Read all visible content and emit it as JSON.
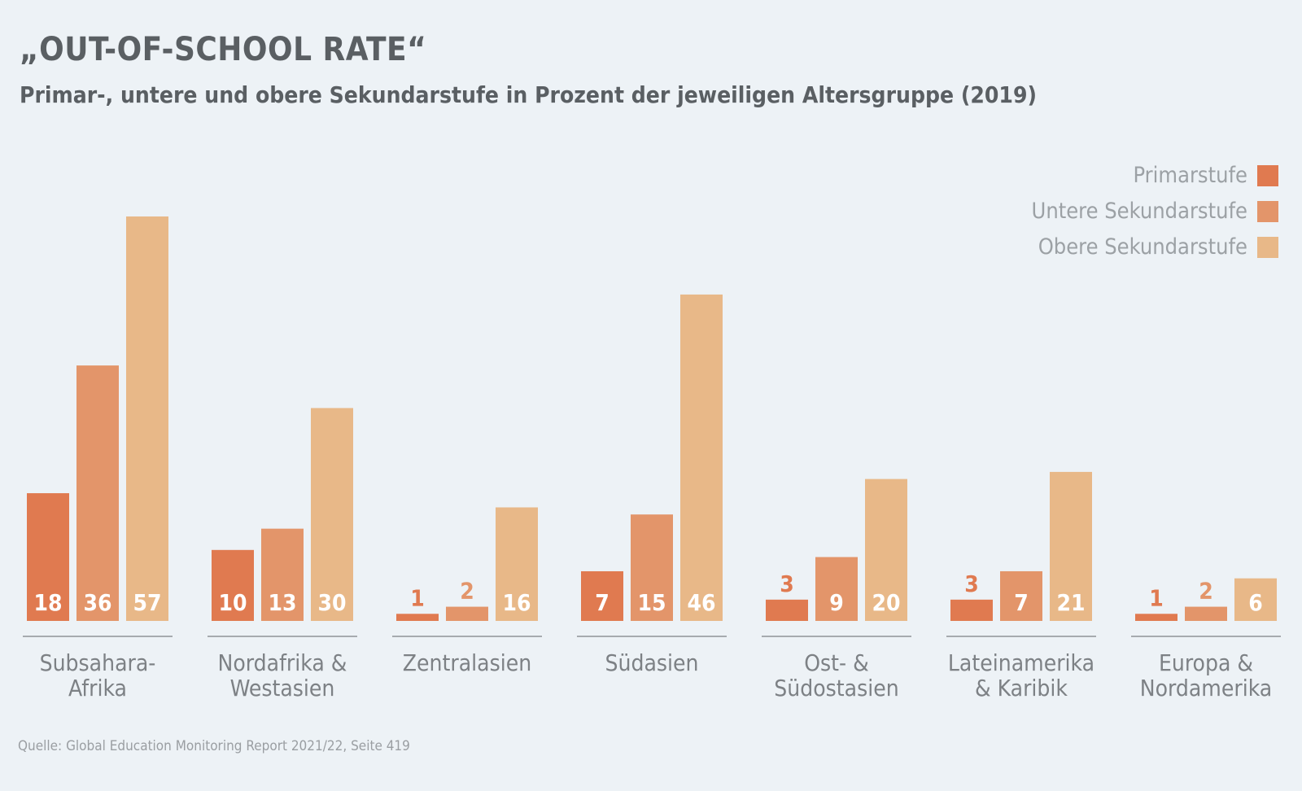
{
  "title": "„OUT-OF-SCHOOL RATE“",
  "subtitle": "Primar-, untere und obere Sekundarstufe in Prozent der jeweiligen Altersgruppe (2019)",
  "source": "Quelle: Global Education Monitoring Report 2021/22, Seite 419",
  "legend": [
    {
      "label": "Primarstufe",
      "color": "#e07a50"
    },
    {
      "label": "Untere Sekundarstufe",
      "color": "#e3956a"
    },
    {
      "label": "Obere Sekundarstufe",
      "color": "#e8b888"
    }
  ],
  "chart_data": {
    "type": "bar",
    "title": "„OUT-OF-SCHOOL RATE“",
    "subtitle": "Primar-, untere und obere Sekundarstufe in Prozent der jeweiligen Altersgruppe (2019)",
    "categories": [
      [
        "Subsahara-",
        "Afrika"
      ],
      [
        "Nordafrika &",
        "Westasien"
      ],
      [
        "Zentralasien"
      ],
      [
        "Südasien"
      ],
      [
        "Ost- &",
        "Südostasien"
      ],
      [
        "Lateinamerika",
        "& Karibik"
      ],
      [
        "Europa &",
        "Nordamerika"
      ]
    ],
    "series": [
      {
        "name": "Primarstufe",
        "color": "#e07a50",
        "values": [
          18,
          10,
          1,
          7,
          3,
          3,
          1
        ]
      },
      {
        "name": "Untere Sekundarstufe",
        "color": "#e3956a",
        "values": [
          36,
          13,
          2,
          15,
          9,
          7,
          2
        ]
      },
      {
        "name": "Obere Sekundarstufe",
        "color": "#e8b888",
        "values": [
          57,
          30,
          16,
          46,
          20,
          21,
          6
        ]
      }
    ],
    "ylim": [
      0,
      57
    ],
    "grid": false,
    "legend_position": "top-right",
    "label_color_inside": "#ffffff"
  }
}
